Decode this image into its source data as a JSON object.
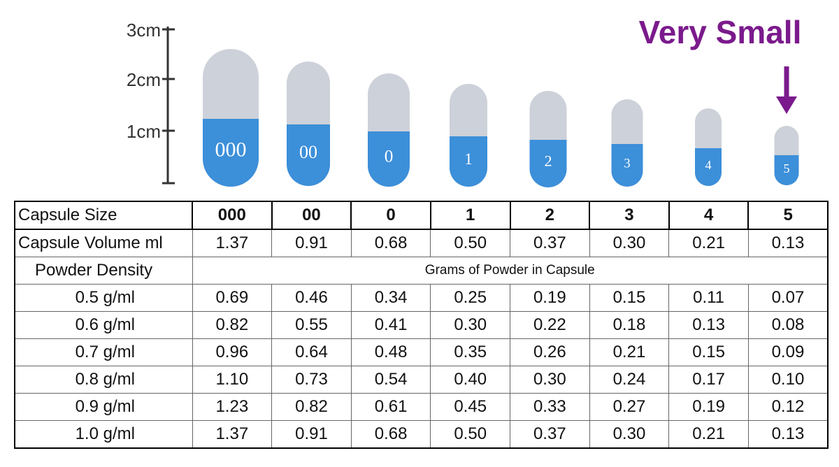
{
  "ruler": {
    "labels": [
      "3cm",
      "2cm",
      "1cm"
    ]
  },
  "annotation": "Very Small",
  "capsules": {
    "labels": [
      "000",
      "00",
      "0",
      "1",
      "2",
      "3",
      "4",
      "5"
    ]
  },
  "table": {
    "rows": [
      [
        "Capsule Size",
        "000",
        "00",
        "0",
        "1",
        "2",
        "3",
        "4",
        "5"
      ],
      [
        "Capsule Volume ml",
        "1.37",
        "0.91",
        "0.68",
        "0.50",
        "0.37",
        "0.30",
        "0.21",
        "0.13"
      ],
      [
        "Powder Density",
        "Grams of Powder in Capsule"
      ],
      [
        "0.5 g/ml",
        "0.69",
        "0.46",
        "0.34",
        "0.25",
        "0.19",
        "0.15",
        "0.11",
        "0.07"
      ],
      [
        "0.6 g/ml",
        "0.82",
        "0.55",
        "0.41",
        "0.30",
        "0.22",
        "0.18",
        "0.13",
        "0.08"
      ],
      [
        "0.7 g/ml",
        "0.96",
        "0.64",
        "0.48",
        "0.35",
        "0.26",
        "0.21",
        "0.15",
        "0.09"
      ],
      [
        "0.8 g/ml",
        "1.10",
        "0.73",
        "0.54",
        "0.40",
        "0.30",
        "0.24",
        "0.17",
        "0.10"
      ],
      [
        "0.9 g/ml",
        "1.23",
        "0.82",
        "0.61",
        "0.45",
        "0.33",
        "0.27",
        "0.19",
        "0.12"
      ],
      [
        "1.0 g/ml",
        "1.37",
        "0.91",
        "0.68",
        "0.50",
        "0.37",
        "0.30",
        "0.21",
        "0.13"
      ]
    ]
  }
}
